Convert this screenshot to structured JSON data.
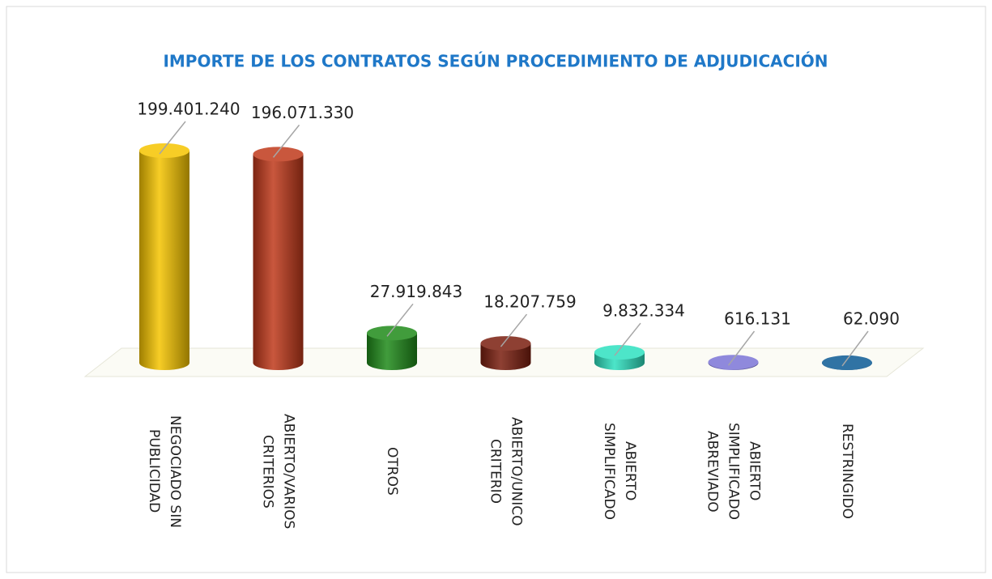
{
  "chart_data": {
    "type": "bar",
    "title": "IMPORTE DE LOS CONTRATOS SEGÚN PROCEDIMIENTO DE ADJUDICACIÓN",
    "categories": [
      "NEGOCIADO SIN\nPUBLICIDAD",
      "ABIERTO/VARIOS\nCRITERIOS",
      "OTROS",
      "ABIERTO/UNICO\nCRITERIO",
      "ABIERTO\nSIMPLIFICADO",
      "ABIERTO\nSIMPLIFICADO\nABREVIADO",
      "RESTRINGIDO"
    ],
    "values": [
      199401240,
      196071330,
      27919843,
      18207759,
      9832334,
      616131,
      62090
    ],
    "value_labels": [
      "199.401.240",
      "196.071.330",
      "27.919.843",
      "18.207.759",
      "9.832.334",
      "616.131",
      "62.090"
    ],
    "colors": [
      "#f5c400",
      "#c0391b",
      "#1f8a1a",
      "#7a1e0f",
      "#2ee0c0",
      "#7b74d6",
      "#0b5a94"
    ]
  }
}
